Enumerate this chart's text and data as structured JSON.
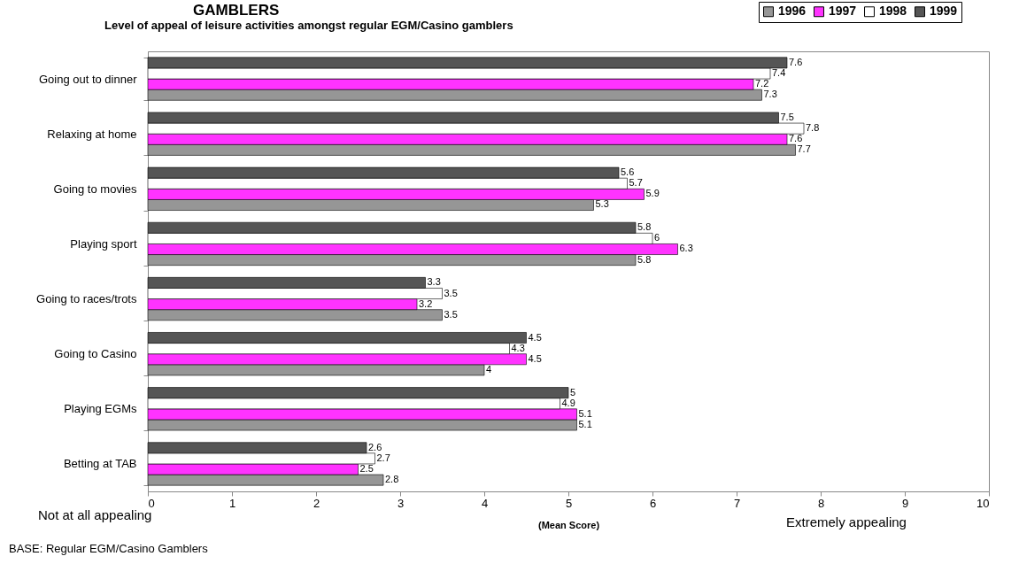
{
  "chart_data": {
    "type": "bar",
    "orientation": "horizontal",
    "title": "GAMBLERS",
    "subtitle": "Level of appeal of leisure activities amongst regular EGM/Casino gamblers",
    "xlabel": "(Mean Score)",
    "categories": [
      "Going out to dinner",
      "Relaxing at home",
      "Going to movies",
      "Playing sport",
      "Going to races/trots",
      "Going to Casino",
      "Playing EGMs",
      "Betting at TAB"
    ],
    "series": [
      {
        "name": "1996",
        "color": "#969696",
        "values": [
          7.3,
          7.7,
          5.3,
          5.8,
          3.5,
          4,
          5.1,
          2.8
        ]
      },
      {
        "name": "1997",
        "color": "#ff33ff",
        "values": [
          7.2,
          7.6,
          5.9,
          6.3,
          3.2,
          4.5,
          5.1,
          2.5
        ]
      },
      {
        "name": "1998",
        "color": "#ffffff",
        "values": [
          7.4,
          7.8,
          5.7,
          6,
          3.5,
          4.3,
          4.9,
          2.7
        ]
      },
      {
        "name": "1999",
        "color": "#555555",
        "values": [
          7.6,
          7.5,
          5.6,
          5.8,
          3.3,
          4.5,
          5,
          2.6
        ]
      }
    ],
    "xlim": [
      0,
      10
    ],
    "xticks": [
      0,
      1,
      2,
      3,
      4,
      5,
      6,
      7,
      8,
      9,
      10
    ],
    "data_labels": true,
    "legend": "top right",
    "annotations": [
      "Not at all appealing",
      "Extremely appealing",
      "BASE: Regular EGM/Casino Gamblers"
    ]
  }
}
